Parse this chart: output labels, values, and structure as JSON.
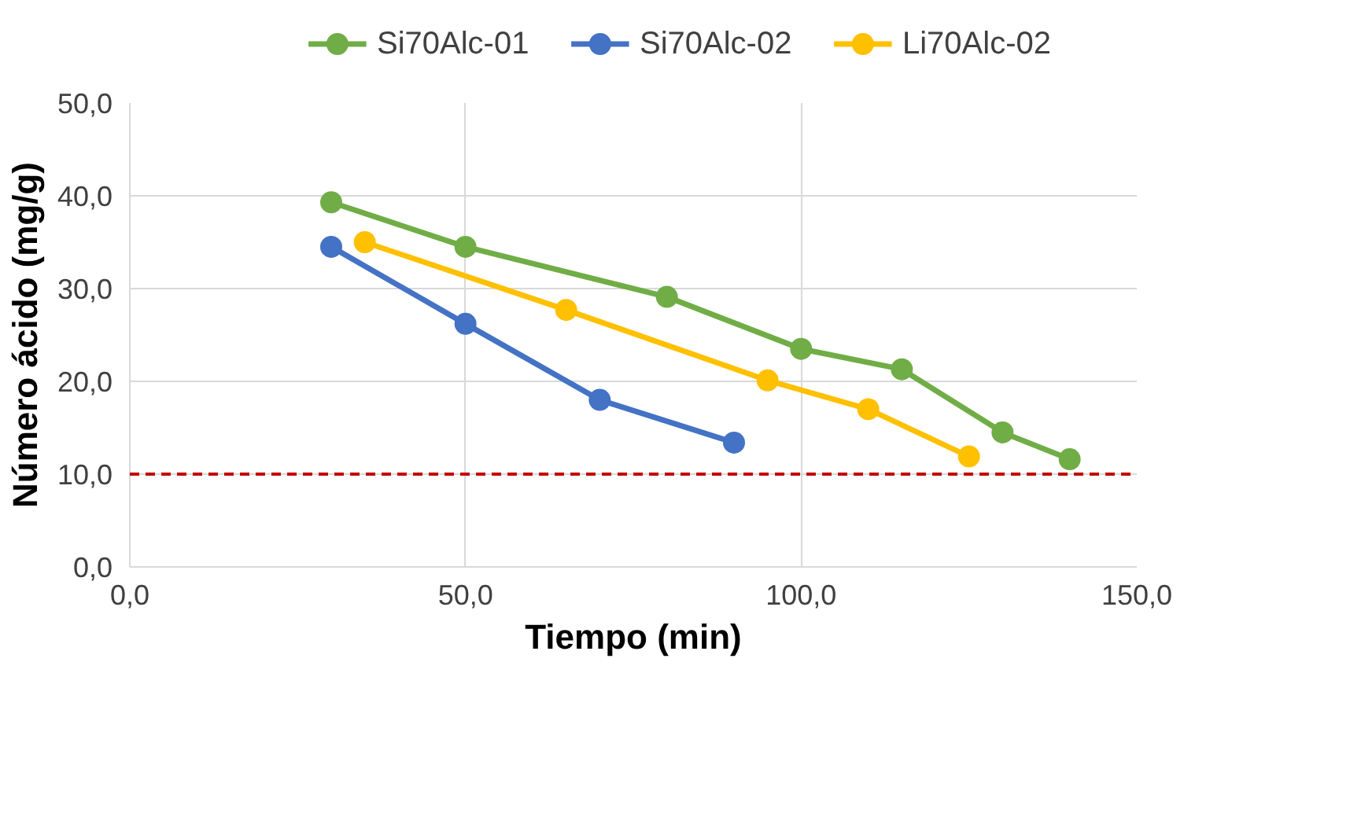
{
  "chart_data": {
    "type": "line",
    "xlabel": "Tiempo (min)",
    "ylabel": "Número ácido (mg/g)",
    "xlim": [
      0,
      150
    ],
    "ylim": [
      0,
      50
    ],
    "xticks": [
      {
        "value": 0,
        "label": "0,0"
      },
      {
        "value": 50,
        "label": "50,0"
      },
      {
        "value": 100,
        "label": "100,0"
      },
      {
        "value": 150,
        "label": "150,0"
      }
    ],
    "yticks": [
      {
        "value": 0,
        "label": "0,0"
      },
      {
        "value": 10,
        "label": "10,0"
      },
      {
        "value": 20,
        "label": "20,0"
      },
      {
        "value": 30,
        "label": "30,0"
      },
      {
        "value": 40,
        "label": "40,0"
      },
      {
        "value": 50,
        "label": "50,0"
      }
    ],
    "grid": true,
    "legend": "top",
    "marker": "circle",
    "line_style": "solid",
    "series": [
      {
        "name": "Si70Alc-01",
        "color": "#70ad47",
        "x": [
          30,
          50,
          80,
          100,
          115,
          130,
          140
        ],
        "values": [
          39.3,
          34.5,
          29.1,
          23.5,
          21.3,
          14.5,
          11.6
        ]
      },
      {
        "name": "Si70Alc-02",
        "color": "#4472c4",
        "x": [
          30,
          50,
          70,
          90
        ],
        "values": [
          34.5,
          26.2,
          18.0,
          13.4
        ]
      },
      {
        "name": "Li70Alc-02",
        "color": "#ffc000",
        "x": [
          35,
          65,
          95,
          110,
          125
        ],
        "values": [
          35.0,
          27.7,
          20.1,
          17.0,
          11.9
        ]
      }
    ],
    "ref_lines": [
      {
        "axis": "y",
        "value": 10,
        "color": "#c00000",
        "line_style": "dashed"
      }
    ]
  }
}
